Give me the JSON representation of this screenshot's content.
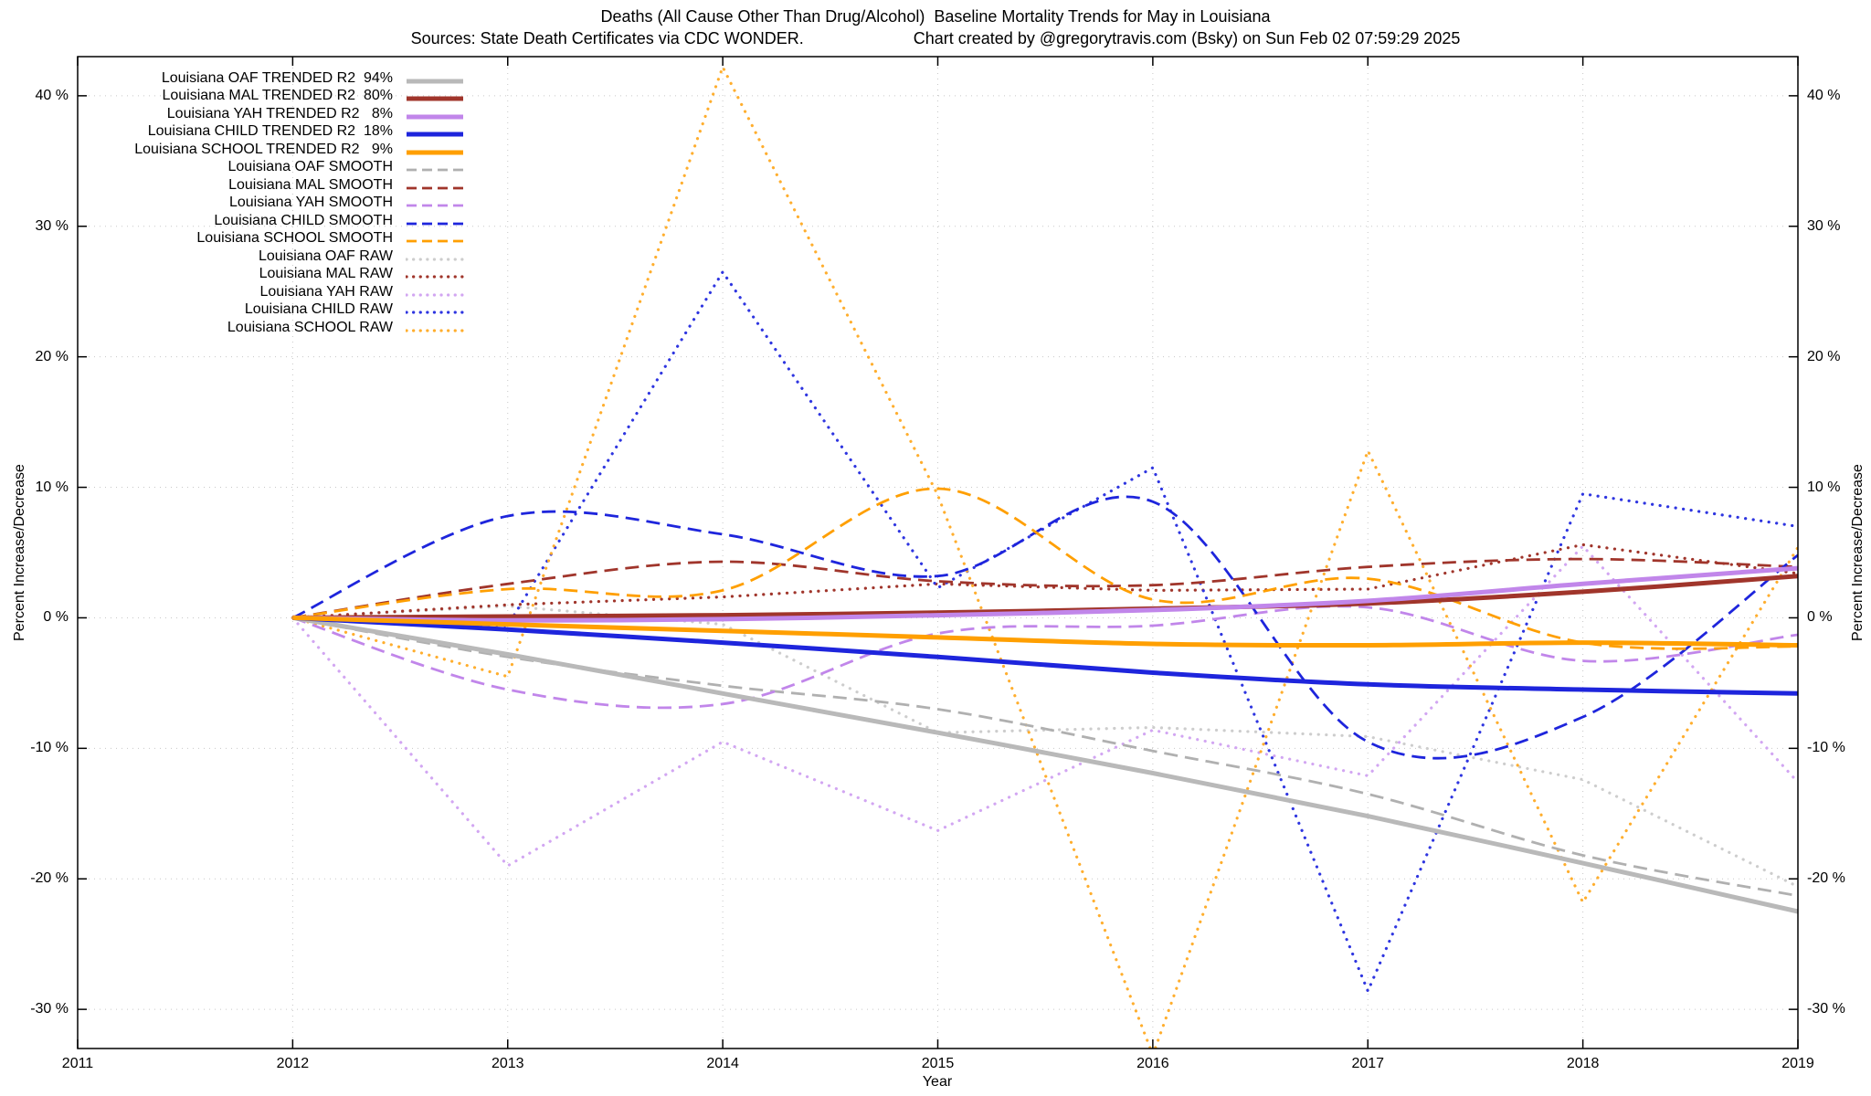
{
  "header": {
    "title": "Deaths (All Cause Other Than Drug/Alcohol)  Baseline Mortality Trends for May in Louisiana",
    "subtitle_left": "Sources: State Death Certificates via CDC WONDER.",
    "subtitle_right": "Chart created by @gregorytravis.com (Bsky) on Sun Feb 02 07:59:29 2025"
  },
  "axes": {
    "x_label": "Year",
    "y_label_left": "Percent Increase/Decrease",
    "y_label_right": "Percent Increase/Decrease",
    "x_ticks": [
      {
        "value": 2011,
        "label": "2011"
      },
      {
        "value": 2012,
        "label": "2012"
      },
      {
        "value": 2013,
        "label": "2013"
      },
      {
        "value": 2014,
        "label": "2014"
      },
      {
        "value": 2015,
        "label": "2015"
      },
      {
        "value": 2016,
        "label": "2016"
      },
      {
        "value": 2017,
        "label": "2017"
      },
      {
        "value": 2018,
        "label": "2018"
      },
      {
        "value": 2019,
        "label": "2019"
      }
    ],
    "y_ticks": [
      {
        "value": 40,
        "label": "40 %"
      },
      {
        "value": 30,
        "label": "30 %"
      },
      {
        "value": 20,
        "label": "20 %"
      },
      {
        "value": 10,
        "label": "10 %"
      },
      {
        "value": 0,
        "label": "0 %"
      },
      {
        "value": -10,
        "label": "-10 %"
      },
      {
        "value": -20,
        "label": "-20 %"
      },
      {
        "value": -30,
        "label": "-30 %"
      }
    ]
  },
  "chart_data": {
    "type": "line",
    "title": "Deaths (All Cause Other Than Drug/Alcohol)  Baseline Mortality Trends for May in Louisiana",
    "xlabel": "Year",
    "ylabel": "Percent Increase/Decrease",
    "xlim": [
      2011,
      2019
    ],
    "ylim": [
      -33,
      43
    ],
    "grid": true,
    "legend_position": "top-left",
    "x": [
      2012,
      2013,
      2014,
      2015,
      2016,
      2017,
      2018,
      2019
    ],
    "series": [
      {
        "key": "oaf-trended",
        "legend_label": "Louisiana OAF TRENDED R2  94%",
        "color": "#b9b9b9",
        "style": "trended",
        "values": [
          0,
          -2.8,
          -5.8,
          -8.8,
          -11.9,
          -15.2,
          -18.8,
          -22.5
        ]
      },
      {
        "key": "mal-trended",
        "legend_label": "Louisiana MAL TRENDED R2  80%",
        "color": "#a0352b",
        "style": "trended",
        "values": [
          0,
          0.1,
          0.2,
          0.4,
          0.7,
          1.1,
          2.0,
          3.2
        ]
      },
      {
        "key": "yah-trended",
        "legend_label": "Louisiana YAH TRENDED R2   8%",
        "color": "#c186ea",
        "style": "trended",
        "values": [
          0,
          -0.2,
          -0.1,
          0.2,
          0.6,
          1.3,
          2.6,
          3.8
        ]
      },
      {
        "key": "child-trended",
        "legend_label": "Louisiana CHILD TRENDED R2  18%",
        "color": "#1e25dc",
        "style": "trended",
        "values": [
          0,
          -0.9,
          -1.9,
          -3.0,
          -4.2,
          -5.1,
          -5.5,
          -5.8
        ]
      },
      {
        "key": "school-trended",
        "legend_label": "Louisiana SCHOOL TRENDED R2   9%",
        "color": "#ff9f00",
        "style": "trended",
        "values": [
          0,
          -0.5,
          -1.0,
          -1.5,
          -2.0,
          -2.1,
          -1.9,
          -2.1
        ]
      },
      {
        "key": "oaf-smooth",
        "legend_label": "Louisiana OAF SMOOTH",
        "color": "#b0b0b0",
        "style": "smooth",
        "values": [
          0,
          -3.0,
          -5.2,
          -7.0,
          -10.2,
          -13.5,
          -18.2,
          -21.3
        ]
      },
      {
        "key": "mal-smooth",
        "legend_label": "Louisiana MAL SMOOTH",
        "color": "#a0352b",
        "style": "smooth",
        "values": [
          0,
          2.6,
          4.3,
          2.8,
          2.5,
          3.9,
          4.5,
          3.9
        ]
      },
      {
        "key": "yah-smooth",
        "legend_label": "Louisiana YAH SMOOTH",
        "color": "#c186ea",
        "style": "smooth",
        "values": [
          0,
          -5.5,
          -6.6,
          -1.2,
          -0.6,
          0.8,
          -3.3,
          -1.3
        ]
      },
      {
        "key": "child-smooth",
        "legend_label": "Louisiana CHILD SMOOTH",
        "color": "#1e25dc",
        "style": "smooth",
        "values": [
          0,
          7.8,
          6.4,
          3.2,
          8.9,
          -9.5,
          -7.6,
          4.8
        ]
      },
      {
        "key": "school-smooth",
        "legend_label": "Louisiana SCHOOL SMOOTH",
        "color": "#ff9f00",
        "style": "smooth",
        "values": [
          0,
          2.2,
          2.1,
          9.9,
          1.4,
          3.0,
          -1.9,
          -2.2
        ]
      },
      {
        "key": "oaf-raw",
        "legend_label": "Louisiana OAF RAW",
        "color": "#cdcdcd",
        "style": "raw",
        "values": [
          0,
          0.9,
          -0.5,
          -8.8,
          -8.4,
          -9.1,
          -12.4,
          -20.6
        ]
      },
      {
        "key": "mal-raw",
        "legend_label": "Louisiana MAL RAW",
        "color": "#a0352b",
        "style": "raw",
        "values": [
          0,
          1.0,
          1.6,
          2.6,
          2.1,
          2.2,
          5.6,
          3.4
        ]
      },
      {
        "key": "yah-raw",
        "legend_label": "Louisiana YAH RAW",
        "color": "#d2a6f2",
        "style": "raw",
        "values": [
          0,
          -19.0,
          -9.5,
          -16.3,
          -8.6,
          -12.1,
          5.5,
          -12.6
        ]
      },
      {
        "key": "child-raw",
        "legend_label": "Louisiana CHILD RAW",
        "color": "#2e35e0",
        "style": "raw",
        "values": [
          0,
          -0.6,
          26.5,
          2.3,
          11.5,
          -28.6,
          9.5,
          7.0
        ]
      },
      {
        "key": "school-raw",
        "legend_label": "Louisiana SCHOOL RAW",
        "color": "#ffae2e",
        "style": "raw",
        "values": [
          0,
          -4.5,
          42.2,
          9.4,
          -33.5,
          12.8,
          -21.8,
          5.4
        ]
      }
    ]
  }
}
